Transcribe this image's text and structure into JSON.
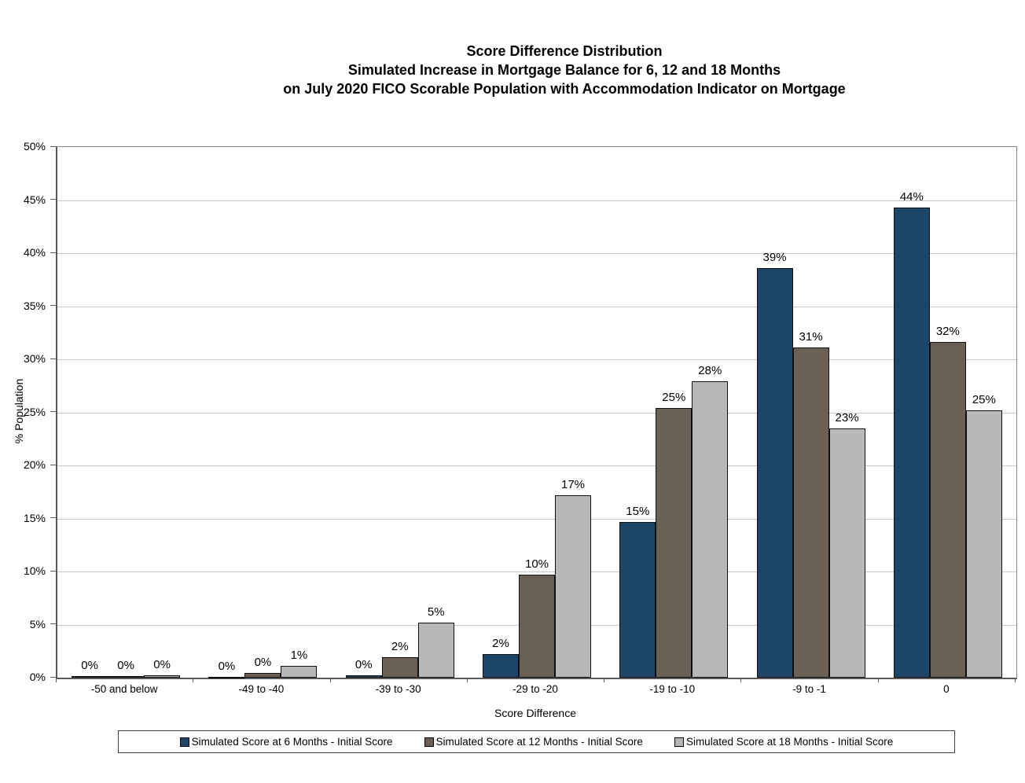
{
  "title": {
    "line1": "Score Difference Distribution",
    "line2": "Simulated Increase in Mortgage Balance for 6, 12 and 18 Months",
    "line3": "on July 2020 FICO Scorable Population with Accommodation Indicator on Mortgage"
  },
  "chart_data": {
    "type": "bar",
    "title": "Score Difference Distribution — Simulated Increase in Mortgage Balance for 6, 12 and 18 Months on July 2020 FICO Scorable Population with Accommodation Indicator on Mortgage",
    "categories": [
      "-50 and below",
      "-49 to -40",
      "-39 to -30",
      "-29 to -20",
      "-19 to -10",
      "-9 to -1",
      "0"
    ],
    "series": [
      {
        "name": "Simulated Score at 6 Months - Initial Score",
        "color": "#1D4567",
        "values": [
          0.15,
          0.1,
          0.25,
          2.2,
          14.7,
          38.6,
          44.3
        ],
        "labels": [
          "0%",
          "0%",
          "0%",
          "2%",
          "15%",
          "39%",
          "44%"
        ]
      },
      {
        "name": "Simulated Score at 12 Months - Initial Score",
        "color": "#6A6056",
        "values": [
          0.15,
          0.45,
          1.9,
          9.7,
          25.4,
          31.1,
          31.6
        ],
        "labels": [
          "0%",
          "0%",
          "2%",
          "10%",
          "25%",
          "31%",
          "32%"
        ]
      },
      {
        "name": "Simulated Score at 18 Months - Initial Score",
        "color": "#B8B8B8",
        "values": [
          0.2,
          1.1,
          5.2,
          17.2,
          27.9,
          23.5,
          25.2
        ],
        "labels": [
          "0%",
          "1%",
          "5%",
          "17%",
          "28%",
          "23%",
          "25%"
        ]
      }
    ],
    "xlabel": "Score Difference",
    "ylabel": "% Population",
    "ylim": [
      0,
      50
    ],
    "ytick_step": 5,
    "ytick_suffix": "%",
    "grid": true,
    "legend_position": "bottom",
    "colors": {
      "gridline": "#C8C8C8",
      "axis": "#595959",
      "bar_border": "#0F0F0F",
      "plot_border": "#858585"
    }
  }
}
